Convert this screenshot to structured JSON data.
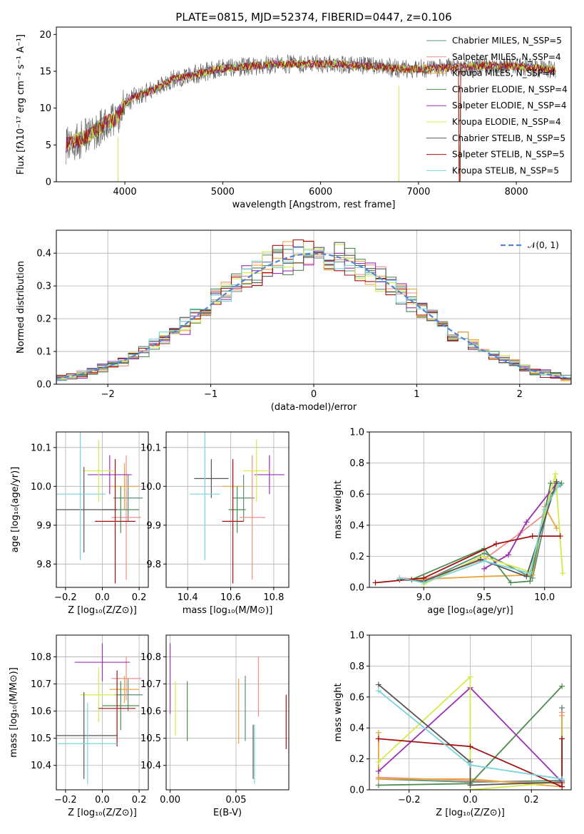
{
  "figure_title": "PLATE=0815, MJD=52374, FIBERID=0447, z=0.106",
  "colors": [
    "#5b8f70",
    "#f08d86",
    "#e6a53f",
    "#4f8a4f",
    "#9b30b5",
    "#d6e84a",
    "#555555",
    "#a01010",
    "#78d4d8"
  ],
  "chart_data": [
    {
      "id": "spectrum",
      "type": "line",
      "xlabel": "wavelength [Angstrom, rest frame]",
      "ylabel": "Flux [fλ10⁻¹⁷ erg cm⁻² s⁻¹ A⁻¹]",
      "xlim": [
        3300,
        8560
      ],
      "ylim": [
        0,
        21
      ],
      "xticks": [
        "4000",
        "5000",
        "6000",
        "7000",
        "8000"
      ],
      "yticks": [
        "0",
        "5",
        "10",
        "15",
        "20"
      ],
      "continuum": {
        "x": [
          3400,
          3500,
          3600,
          3700,
          3800,
          3900,
          4000,
          4100,
          4300,
          4500,
          4700,
          4900,
          5100,
          5300,
          5500,
          5800,
          6100,
          6500,
          6900,
          7300,
          7700,
          8000,
          8400
        ],
        "y": [
          5,
          5.5,
          6,
          7,
          8,
          8.5,
          10.5,
          11.5,
          12.5,
          14,
          14.5,
          15.2,
          15.5,
          15.7,
          15.9,
          16,
          16,
          15.7,
          15.3,
          15.5,
          15.8,
          15.7,
          15.2
        ]
      },
      "series": [
        {
          "name": "Chabrier MILES, N_SSP=5"
        },
        {
          "name": "Salpeter MILES, N_SSP=4"
        },
        {
          "name": "Kroupa MILES, N_SSP=4"
        },
        {
          "name": "Chabrier ELODIE, N_SSP=4"
        },
        {
          "name": "Salpeter ELODIE, N_SSP=4"
        },
        {
          "name": "Kroupa ELODIE, N_SSP=4"
        },
        {
          "name": "Chabrier STELIB, N_SSP=5"
        },
        {
          "name": "Salpeter STELIB, N_SSP=5"
        },
        {
          "name": "Kroupa STELIB, N_SSP=5"
        }
      ],
      "legend": "top-right"
    },
    {
      "id": "residual-hist",
      "type": "bar",
      "xlabel": "(data-model)/error",
      "ylabel": "Normed distribution",
      "xlim": [
        -2.5,
        2.5
      ],
      "ylim": [
        0,
        0.47
      ],
      "xticks": [
        "−2",
        "−1",
        "0",
        "1",
        "2"
      ],
      "yticks": [
        "0.0",
        "0.1",
        "0.2",
        "0.3",
        "0.4"
      ],
      "bin_width": 0.1,
      "gaussian_label": "𝒩(0, 1)",
      "grid": true,
      "legend": "top-right"
    },
    {
      "id": "age-vs-Z",
      "type": "scatter",
      "xlabel": "Z [log₁₀(Z/Z⊙)]",
      "ylabel": "age  [log₁₀(age/yr)]",
      "xlim": [
        -0.25,
        0.25
      ],
      "ylim": [
        9.74,
        10.14
      ],
      "xticks": [
        "−0.2",
        "0.0",
        "0.2"
      ],
      "yticks": [
        "9.8",
        "9.9",
        "10.0",
        "10.1"
      ],
      "points": [
        {
          "x": 0.14,
          "y": 9.97,
          "xerr": 0.08,
          "yerr": 0.06
        },
        {
          "x": 0.13,
          "y": 9.92,
          "xerr": 0.08,
          "yerr": 0.16
        },
        {
          "x": 0.12,
          "y": 10.0,
          "xerr": 0.08,
          "yerr": 0.06
        },
        {
          "x": 0.1,
          "y": 9.94,
          "xerr": 0.1,
          "yerr": 0.06
        },
        {
          "x": 0.04,
          "y": 10.03,
          "xerr": 0.12,
          "yerr": 0.05
        },
        {
          "x": -0.02,
          "y": 10.04,
          "xerr": 0.08,
          "yerr": 0.08
        },
        {
          "x": -0.1,
          "y": 9.94,
          "xerr": 0.18,
          "yerr": 0.11
        },
        {
          "x": 0.07,
          "y": 9.91,
          "xerr": 0.11,
          "yerr": 0.16
        },
        {
          "x": -0.12,
          "y": 9.98,
          "xerr": 0.14,
          "yerr": 0.17
        }
      ],
      "grid": true
    },
    {
      "id": "age-vs-mass",
      "type": "scatter",
      "xlabel": "mass [log₁₀(M/M⊙)]",
      "ylabel": "",
      "xlim": [
        10.3,
        10.87
      ],
      "ylim": [
        9.74,
        10.14
      ],
      "xticks": [
        "10.4",
        "10.6",
        "10.8"
      ],
      "yticks": [
        "9.8",
        "9.9",
        "10.0",
        "10.1"
      ],
      "points": [
        {
          "x": 10.66,
          "y": 9.97,
          "xerr": 0.05,
          "yerr": 0.06
        },
        {
          "x": 10.7,
          "y": 9.92,
          "xerr": 0.06,
          "yerr": 0.16
        },
        {
          "x": 10.61,
          "y": 10.0,
          "xerr": 0.05,
          "yerr": 0.06
        },
        {
          "x": 10.63,
          "y": 9.94,
          "xerr": 0.04,
          "yerr": 0.06
        },
        {
          "x": 10.78,
          "y": 10.03,
          "xerr": 0.07,
          "yerr": 0.05
        },
        {
          "x": 10.72,
          "y": 10.04,
          "xerr": 0.06,
          "yerr": 0.08
        },
        {
          "x": 10.51,
          "y": 10.02,
          "xerr": 0.08,
          "yerr": 0.05
        },
        {
          "x": 10.61,
          "y": 9.91,
          "xerr": 0.05,
          "yerr": 0.16
        },
        {
          "x": 10.48,
          "y": 9.98,
          "xerr": 0.07,
          "yerr": 0.17
        }
      ],
      "grid": true
    },
    {
      "id": "mass-weight-vs-age",
      "type": "line",
      "xlabel": "age  [log₁₀(age/yr)]",
      "ylabel": "mass weight",
      "xlim": [
        8.55,
        10.22
      ],
      "ylim": [
        0,
        1.0
      ],
      "xticks": [
        "9.0",
        "9.5",
        "10.0"
      ],
      "yticks": [
        "0.0",
        "0.2",
        "0.4",
        "0.6",
        "0.8",
        "1.0"
      ],
      "series": [
        {
          "x": [
            8.8,
            9.0,
            9.5,
            9.9,
            10.05,
            10.13
          ],
          "y": [
            0.05,
            0.04,
            0.22,
            0.06,
            0.6,
            0.66
          ]
        },
        {
          "x": [
            8.8,
            9.0,
            9.5,
            9.8,
            10.0,
            10.1
          ],
          "y": [
            0.06,
            0.05,
            0.18,
            0.35,
            0.47,
            0.66
          ]
        },
        {
          "x": [
            8.9,
            9.5,
            9.9,
            10.0,
            10.1
          ],
          "y": [
            0.05,
            0.07,
            0.08,
            0.52,
            0.38
          ]
        },
        {
          "x": [
            8.9,
            9.5,
            9.72,
            9.88,
            10.05,
            10.14
          ],
          "y": [
            0.05,
            0.25,
            0.03,
            0.04,
            0.67,
            0.67
          ]
        },
        {
          "x": [
            9.5,
            9.7,
            9.85,
            10.1
          ],
          "y": [
            0.12,
            0.21,
            0.42,
            0.67
          ]
        },
        {
          "x": [
            9.0,
            9.48,
            9.88,
            10.09,
            10.15
          ],
          "y": [
            0.02,
            0.2,
            0.1,
            0.73,
            0.09
          ]
        },
        {
          "x": [
            8.8,
            9.0,
            9.47,
            9.85,
            10.1
          ],
          "y": [
            0.05,
            0.04,
            0.18,
            0.07,
            0.68
          ]
        },
        {
          "x": [
            8.6,
            9.0,
            9.6,
            9.9,
            10.13
          ],
          "y": [
            0.03,
            0.06,
            0.28,
            0.33,
            0.33
          ]
        },
        {
          "x": [
            8.8,
            9.0,
            9.5,
            9.88,
            10.0,
            10.12
          ],
          "y": [
            0.06,
            0.03,
            0.17,
            0.09,
            0.5,
            0.66
          ]
        }
      ],
      "grid": true
    },
    {
      "id": "mass-vs-Z",
      "type": "scatter",
      "xlabel": "Z [log₁₀(Z/Z⊙)]",
      "ylabel": "mass [log₁₀(M/M⊙)]",
      "xlim": [
        -0.25,
        0.25
      ],
      "ylim": [
        10.31,
        10.88
      ],
      "xticks": [
        "−0.2",
        "0.0",
        "0.2"
      ],
      "yticks": [
        "10.4",
        "10.5",
        "10.6",
        "10.7",
        "10.8"
      ],
      "points": [
        {
          "x": 0.14,
          "y": 10.66,
          "xerr": 0.08,
          "yerr": 0.06
        },
        {
          "x": 0.13,
          "y": 10.72,
          "xerr": 0.08,
          "yerr": 0.08
        },
        {
          "x": 0.12,
          "y": 10.68,
          "xerr": 0.08,
          "yerr": 0.05
        },
        {
          "x": 0.1,
          "y": 10.62,
          "xerr": 0.1,
          "yerr": 0.09
        },
        {
          "x": 0.0,
          "y": 10.78,
          "xerr": 0.15,
          "yerr": 0.07
        },
        {
          "x": -0.02,
          "y": 10.66,
          "xerr": 0.1,
          "yerr": 0.1
        },
        {
          "x": -0.1,
          "y": 10.51,
          "xerr": 0.18,
          "yerr": 0.16
        },
        {
          "x": 0.08,
          "y": 10.61,
          "xerr": 0.1,
          "yerr": 0.14
        },
        {
          "x": -0.08,
          "y": 10.48,
          "xerr": 0.16,
          "yerr": 0.15
        }
      ],
      "grid": true
    },
    {
      "id": "mass-vs-ebv",
      "type": "scatter",
      "xlabel": "E(B-V)",
      "ylabel": "",
      "xlim": [
        -0.003,
        0.09
      ],
      "ylim": [
        10.31,
        10.88
      ],
      "xticks": [
        "0.00",
        "0.05"
      ],
      "yticks": [
        "10.4",
        "10.5",
        "10.6",
        "10.7",
        "10.8"
      ],
      "points": [
        {
          "x": 0.057,
          "y": 10.61,
          "yerr": 0.12
        },
        {
          "x": 0.067,
          "y": 10.69,
          "yerr": 0.11
        },
        {
          "x": 0.052,
          "y": 10.6,
          "yerr": 0.12
        },
        {
          "x": 0.013,
          "y": 10.6,
          "yerr": 0.11
        },
        {
          "x": 0.0,
          "y": 10.72,
          "yerr": 0.13
        },
        {
          "x": 0.004,
          "y": 10.61,
          "yerr": 0.1
        },
        {
          "x": 0.063,
          "y": 10.45,
          "yerr": 0.1
        },
        {
          "x": 0.088,
          "y": 10.56,
          "yerr": 0.1
        },
        {
          "x": 0.064,
          "y": 10.44,
          "yerr": 0.11
        }
      ],
      "grid": true
    },
    {
      "id": "mass-weight-vs-Z",
      "type": "line",
      "xlabel": "Z [log₁₀(Z/Z⊙)]",
      "ylabel": "mass weight",
      "xlim": [
        -0.33,
        0.33
      ],
      "ylim": [
        0,
        1.0
      ],
      "xticks": [
        "−0.2",
        "0.0",
        "0.2"
      ],
      "yticks": [
        "0.0",
        "0.2",
        "0.4",
        "0.6",
        "0.8",
        "1.0"
      ],
      "series": [
        {
          "x": [
            -0.3,
            0.0,
            0.3,
            0.3
          ],
          "y": [
            0.07,
            0.05,
            0.06,
            0.53
          ]
        },
        {
          "x": [
            -0.3,
            0.0,
            0.3,
            0.3
          ],
          "y": [
            0.08,
            0.06,
            0.04,
            0.5
          ]
        },
        {
          "x": [
            -0.3,
            -0.3,
            0.0,
            0.3,
            0.3
          ],
          "y": [
            0.37,
            0.07,
            0.07,
            0.02,
            0.48
          ]
        },
        {
          "x": [
            -0.3,
            0.0,
            0.3
          ],
          "y": [
            0.03,
            0.04,
            0.67
          ]
        },
        {
          "x": [
            -0.3,
            0.0,
            0.3
          ],
          "y": [
            0.12,
            0.66,
            0.05
          ]
        },
        {
          "x": [
            -0.3,
            0.0,
            0.0,
            0.3
          ],
          "y": [
            0.18,
            0.73,
            0.0,
            0.05
          ]
        },
        {
          "x": [
            -0.3,
            0.0,
            0.0,
            0.3
          ],
          "y": [
            0.68,
            0.18,
            0.03,
            0.05
          ]
        },
        {
          "x": [
            -0.3,
            0.0,
            0.3,
            0.3
          ],
          "y": [
            0.33,
            0.28,
            0.02,
            0.33
          ]
        },
        {
          "x": [
            -0.3,
            0.0,
            0.3
          ],
          "y": [
            0.64,
            0.16,
            0.07
          ]
        }
      ],
      "grid": true
    }
  ]
}
